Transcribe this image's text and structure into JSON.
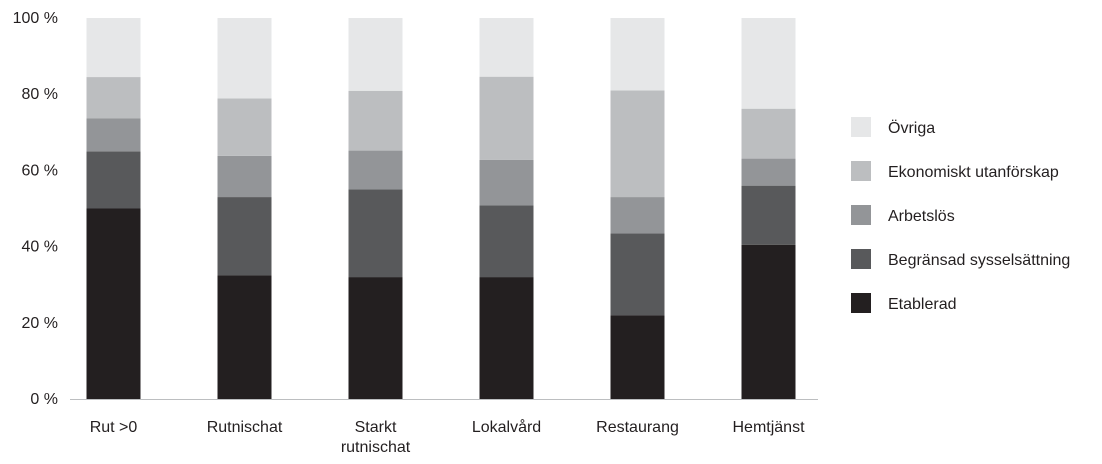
{
  "chart_data": {
    "type": "bar",
    "stacked": true,
    "categories": [
      "Rut >0",
      "Rutnischat",
      "Starkt rutnischat",
      "Lokalvård",
      "Restaurang",
      "Hemtjänst"
    ],
    "category_label_lines": [
      [
        "Rut >0"
      ],
      [
        "Rutnischat"
      ],
      [
        "Starkt",
        "rutnischat"
      ],
      [
        "Lokalvård"
      ],
      [
        "Restaurang"
      ],
      [
        "Hemtjänst"
      ]
    ],
    "series": [
      {
        "name": "Etablerad",
        "color": "#231f20",
        "values": [
          50,
          32.5,
          32,
          32,
          22,
          40.5
        ]
      },
      {
        "name": "Begränsad sysselsättning",
        "color": "#58595b",
        "values": [
          15,
          20.5,
          23,
          18.8,
          21.5,
          15.5
        ]
      },
      {
        "name": "Arbetslös",
        "color": "#939598",
        "values": [
          8.7,
          10.8,
          10.2,
          12,
          9.5,
          7.1
        ]
      },
      {
        "name": "Ekonomiskt utanförskap",
        "color": "#bcbec0",
        "values": [
          10.8,
          15.1,
          15.7,
          21.8,
          28,
          13.1
        ]
      },
      {
        "name": "Övriga",
        "color": "#e6e7e8",
        "values": [
          15.5,
          21.1,
          19.1,
          15.4,
          19,
          23.8
        ]
      }
    ],
    "legend_order": [
      "Övriga",
      "Ekonomiskt utanförskap",
      "Arbetslös",
      "Begränsad sysselsättning",
      "Etablerad"
    ],
    "yticks": [
      0,
      20,
      40,
      60,
      80,
      100
    ],
    "ytick_labels": [
      "0 %",
      "20 %",
      "40 %",
      "60 %",
      "80 %",
      "100 %"
    ],
    "ylim": [
      0,
      100
    ],
    "legend_position": "right",
    "grid": false
  }
}
